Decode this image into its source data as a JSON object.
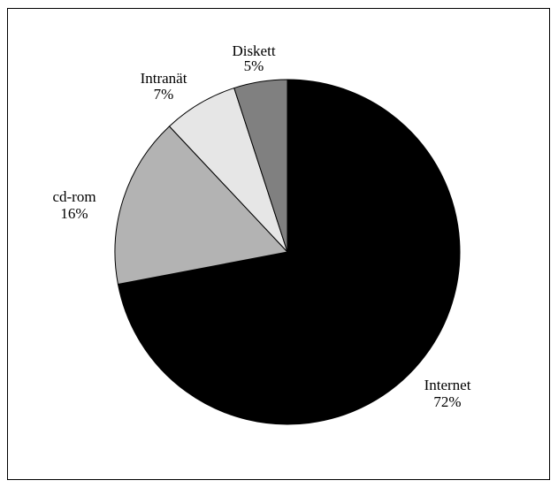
{
  "chart_data": {
    "type": "pie",
    "title": "",
    "slices": [
      {
        "label": "Internet",
        "value_label": "72%",
        "value": 72,
        "color": "#000000"
      },
      {
        "label": "cd-rom",
        "value_label": "16%",
        "value": 16,
        "color": "#b3b3b3"
      },
      {
        "label": "Intranät",
        "value_label": "7%",
        "value": 7,
        "color": "#e6e6e6"
      },
      {
        "label": "Diskett",
        "value_label": "5%",
        "value": 5,
        "color": "#808080"
      }
    ],
    "start_angle": "12 o'clock",
    "direction": "clockwise",
    "legend": "none",
    "labels_outside": true
  }
}
